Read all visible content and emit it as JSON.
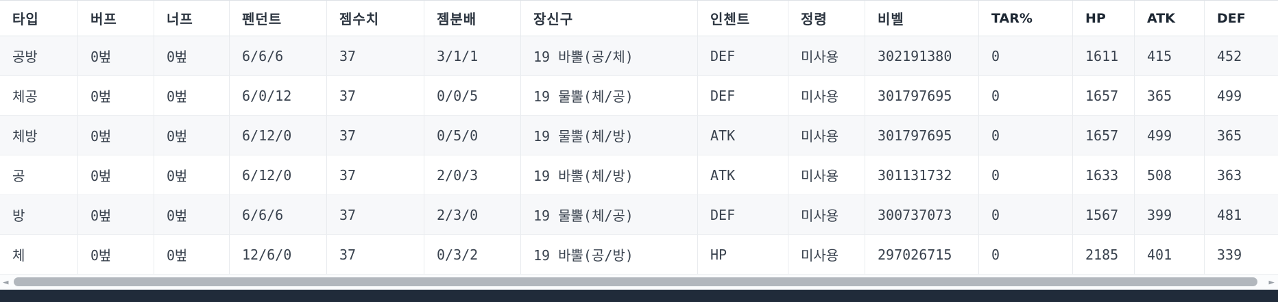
{
  "table": {
    "columns": [
      "타입",
      "버프",
      "너프",
      "펜던트",
      "젬수치",
      "젬분배",
      "장신구",
      "인첸트",
      "정령",
      "비벨",
      "TAR%",
      "HP",
      "ATK",
      "DEF"
    ],
    "rows": [
      [
        "공방",
        "0벞",
        "0벞",
        "6/6/6",
        "37",
        "3/1/1",
        "19 바뿔(공/체)",
        "DEF",
        "미사용",
        "302191380",
        "0",
        "1611",
        "415",
        "452"
      ],
      [
        "체공",
        "0벞",
        "0벞",
        "6/0/12",
        "37",
        "0/0/5",
        "19 물뿔(체/공)",
        "DEF",
        "미사용",
        "301797695",
        "0",
        "1657",
        "365",
        "499"
      ],
      [
        "체방",
        "0벞",
        "0벞",
        "6/12/0",
        "37",
        "0/5/0",
        "19 물뿔(체/방)",
        "ATK",
        "미사용",
        "301797695",
        "0",
        "1657",
        "499",
        "365"
      ],
      [
        "공",
        "0벞",
        "0벞",
        "6/12/0",
        "37",
        "2/0/3",
        "19 바뿔(체/방)",
        "ATK",
        "미사용",
        "301131732",
        "0",
        "1633",
        "508",
        "363"
      ],
      [
        "방",
        "0벞",
        "0벞",
        "6/6/6",
        "37",
        "2/3/0",
        "19 물뿔(체/공)",
        "DEF",
        "미사용",
        "300737073",
        "0",
        "1567",
        "399",
        "481"
      ],
      [
        "체",
        "0벞",
        "0벞",
        "12/6/0",
        "37",
        "0/3/2",
        "19 바뿔(공/방)",
        "HP",
        "미사용",
        "297026715",
        "0",
        "2185",
        "401",
        "339"
      ]
    ]
  },
  "scrollbar": {
    "left_arrow": "◄",
    "right_arrow": "►"
  },
  "colors": {
    "row_alt_bg": "#f7f8fa",
    "grid_border": "#e8ebee",
    "data_text": "#39424e",
    "header_text": "#2c3540",
    "scroll_thumb": "#b2b7bd",
    "bottom_bar": "#202b3a"
  }
}
